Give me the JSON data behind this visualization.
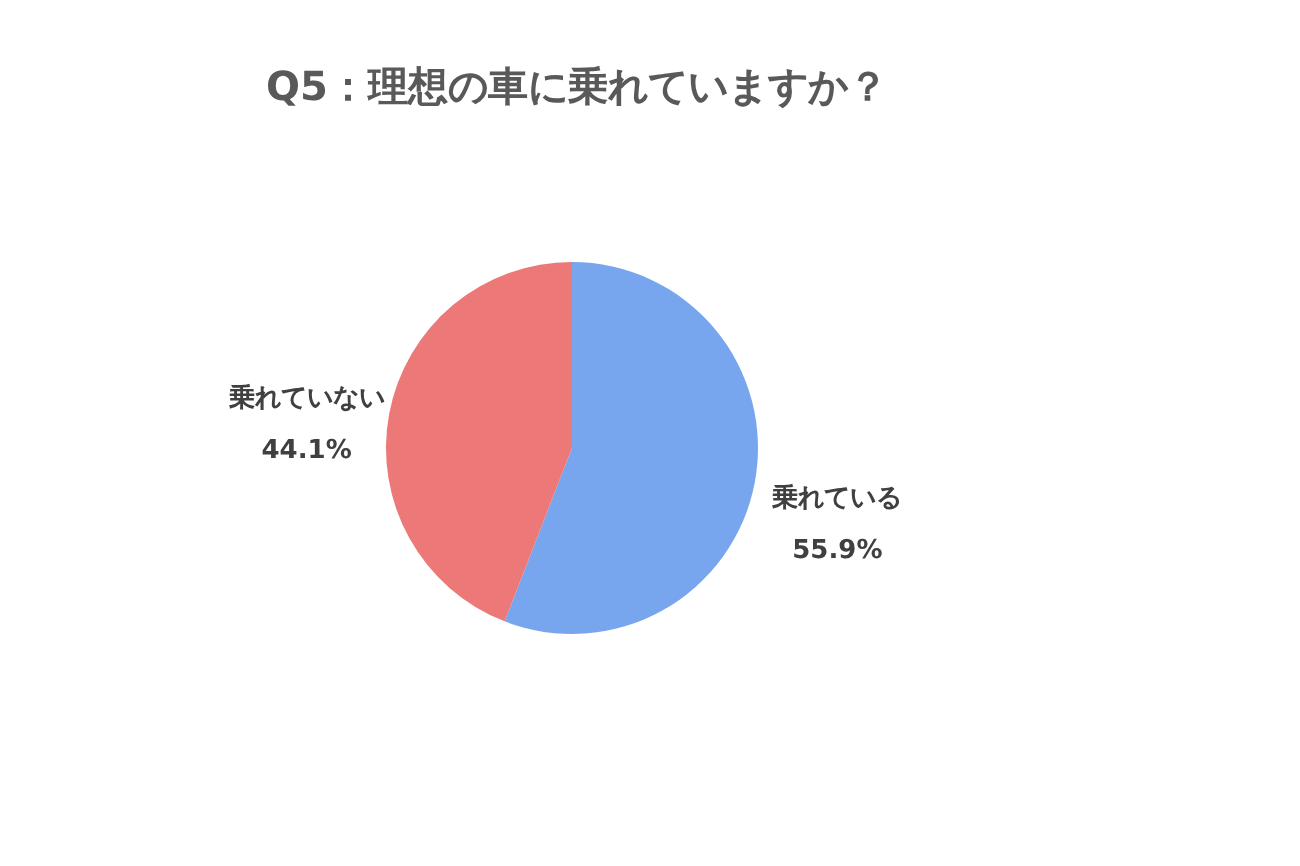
{
  "chart_data": {
    "type": "pie",
    "title": "Q5：理想の車に乗れていますか？",
    "categories": [
      "乗れている",
      "乗れていない"
    ],
    "values": [
      55.9,
      44.1
    ],
    "colors": [
      "#78a6ee",
      "#ec7878"
    ],
    "value_labels": [
      "55.9%",
      "44.1%"
    ],
    "legend": false
  }
}
